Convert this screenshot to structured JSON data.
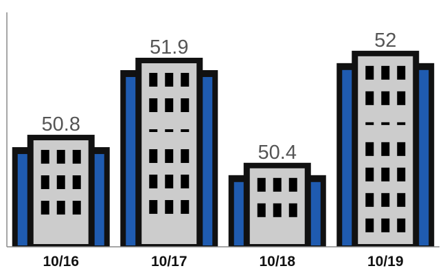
{
  "chart_data": {
    "type": "bar",
    "title": "",
    "xlabel": "",
    "ylabel": "",
    "categories": [
      "10/16",
      "10/17",
      "10/18",
      "10/19"
    ],
    "values": [
      50.8,
      51.9,
      50.4,
      52
    ],
    "value_labels": [
      "50.8",
      "51.9",
      "50.4",
      "52"
    ],
    "ylim": [
      49.2,
      52.45
    ],
    "grid": false,
    "bar_style": "building-icon",
    "colors": {
      "outline": "#111111",
      "side_wing": "#1f5bb0",
      "facade": "#cccccc",
      "window": "#000000",
      "value_text": "#555555",
      "axis": "#888888"
    }
  }
}
